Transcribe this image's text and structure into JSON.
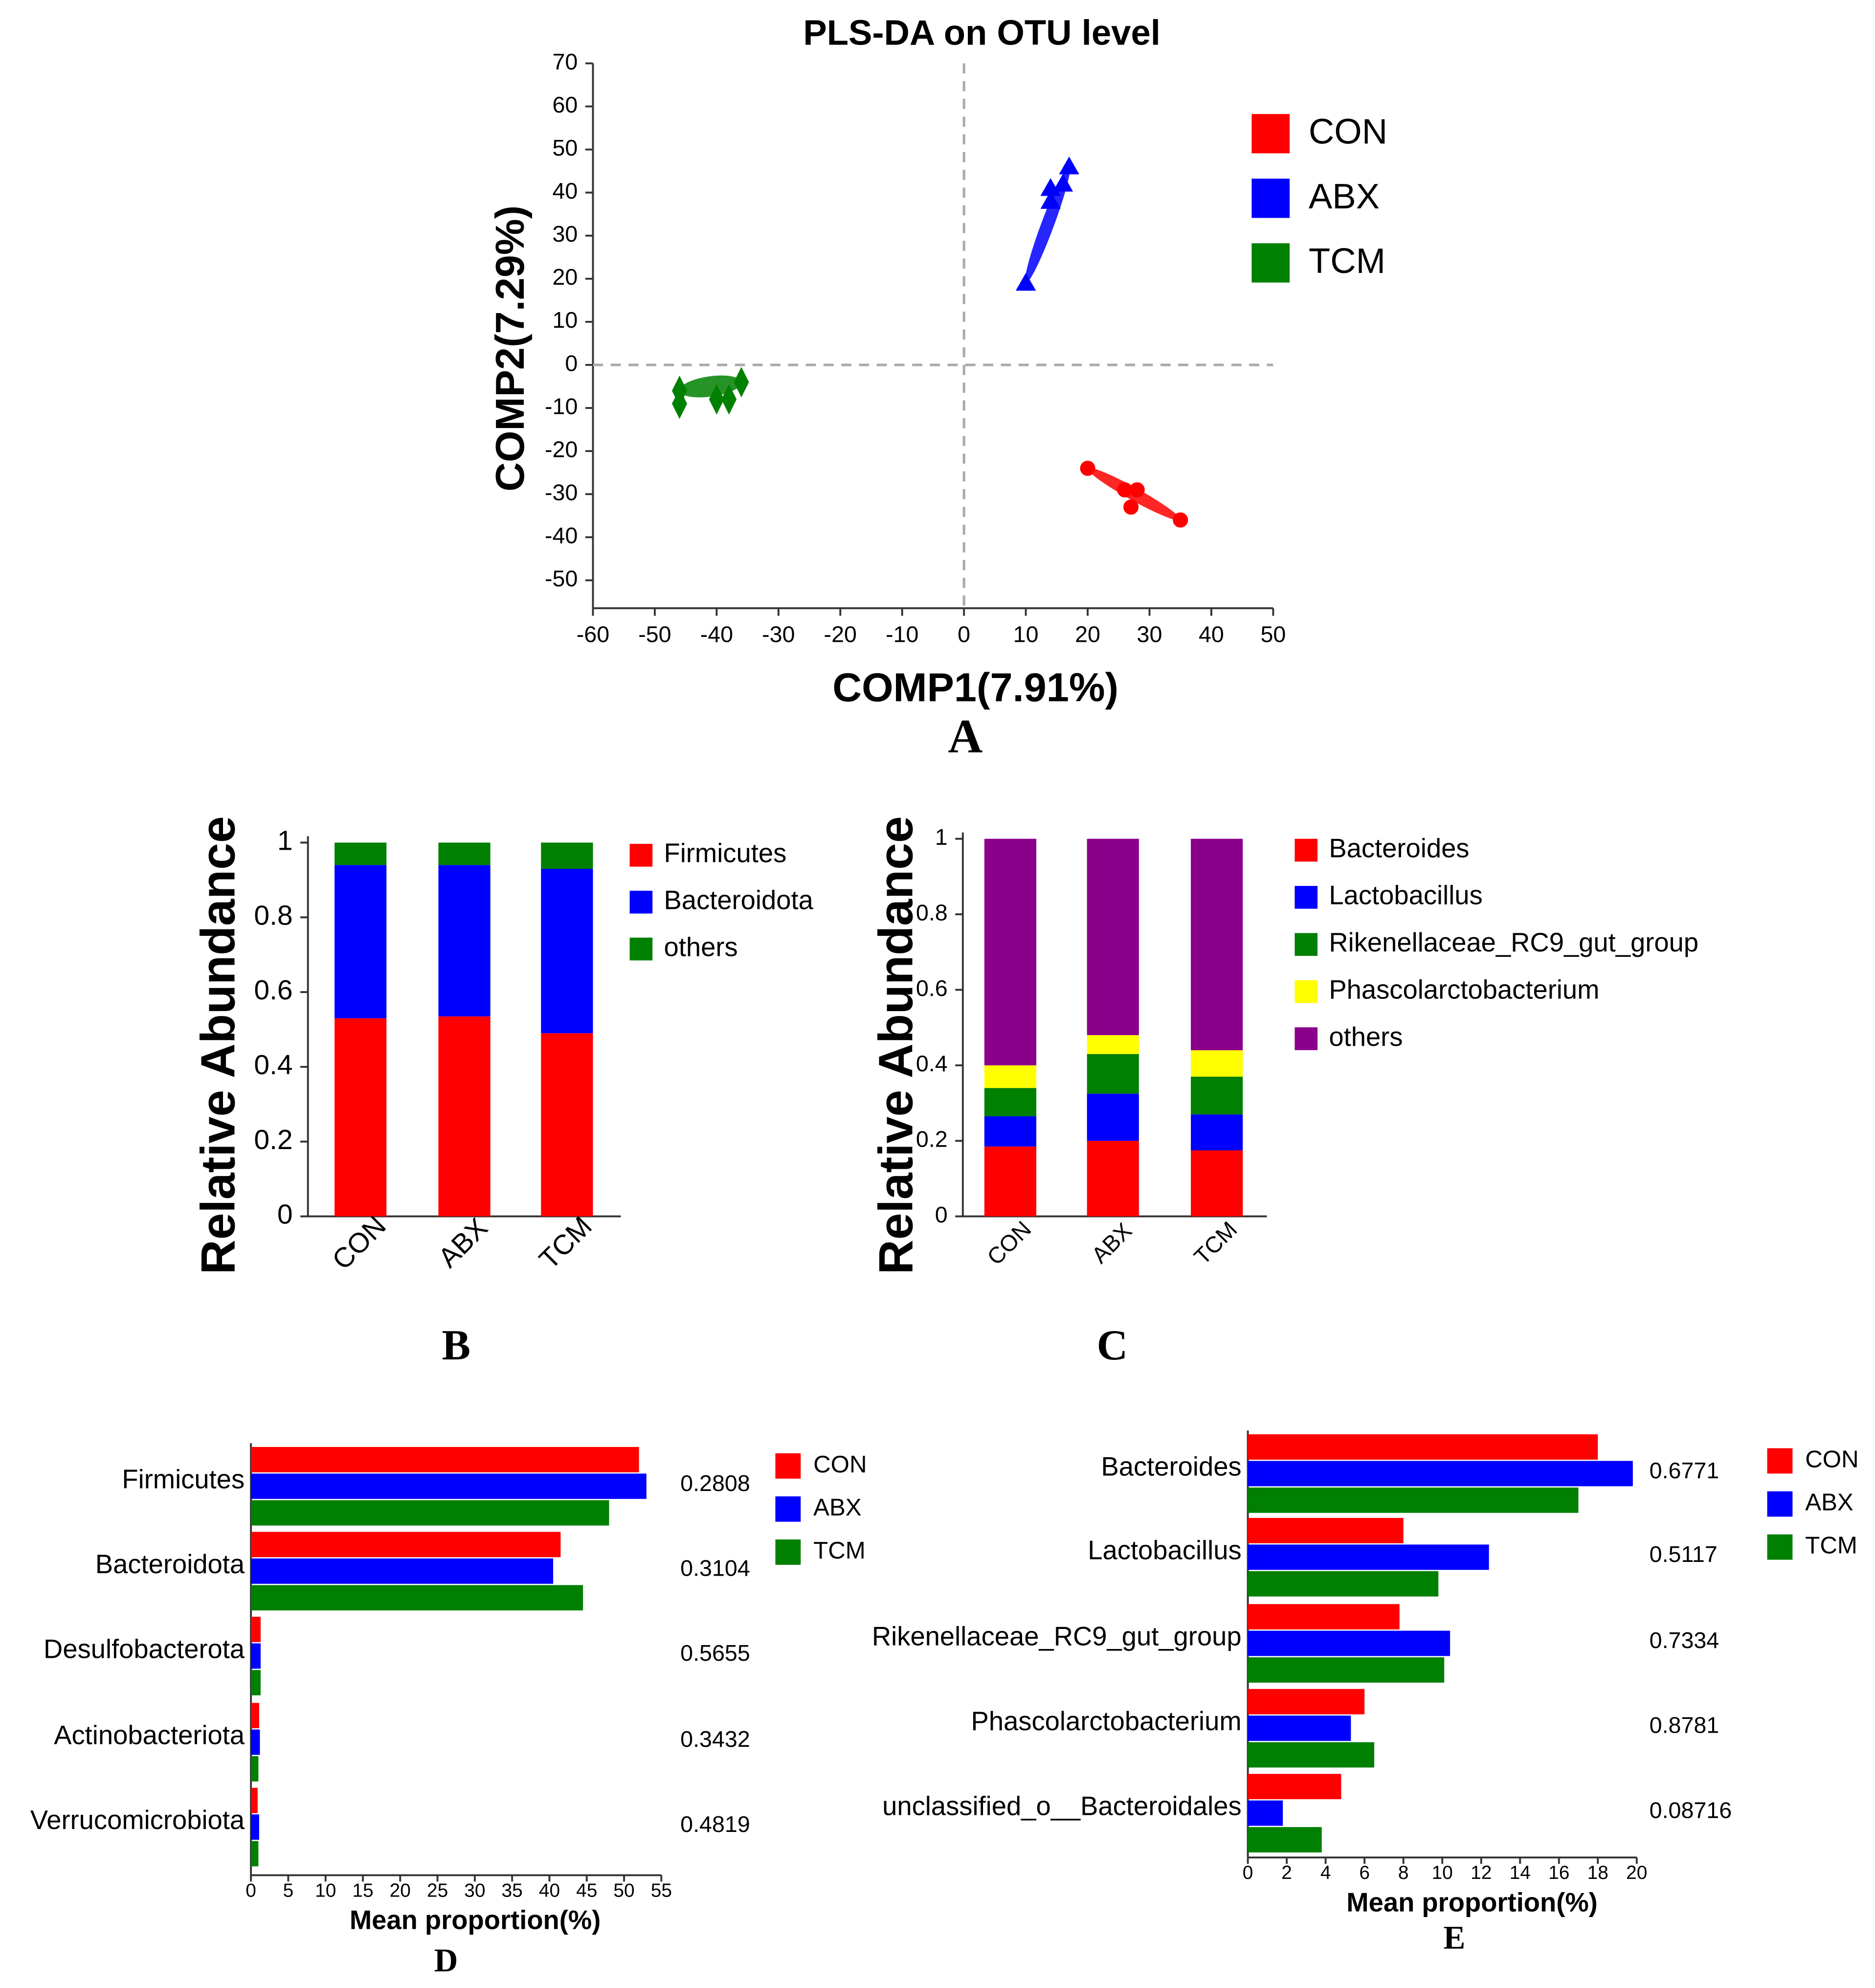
{
  "colors": {
    "CON": "#ff0000",
    "ABX": "#0000ff",
    "TCM": "#008000",
    "yellow": "#ffff00",
    "purple": "#8b008b"
  },
  "chart_data": [
    {
      "type": "scatter",
      "panel": "A",
      "title": "PLS-DA on OTU level",
      "xlabel": "COMP1(7.91%)",
      "ylabel": "COMP2(7.29%)",
      "xlim": [
        -60,
        50
      ],
      "ylim": [
        -56,
        70
      ],
      "xticks": [
        -60,
        -50,
        -40,
        -30,
        -20,
        -10,
        0,
        10,
        20,
        30,
        40,
        50
      ],
      "yticks": [
        70,
        60,
        50,
        40,
        30,
        20,
        10,
        0,
        -10,
        -20,
        -30,
        -40,
        -50
      ],
      "legend": [
        "CON",
        "ABX",
        "TCM"
      ],
      "legend_position": "right",
      "series": [
        {
          "name": "CON",
          "marker": "circle",
          "points": [
            [
              20,
              -24
            ],
            [
              26,
              -29
            ],
            [
              28,
              -29
            ],
            [
              27,
              -33
            ],
            [
              35,
              -36
            ]
          ]
        },
        {
          "name": "ABX",
          "marker": "triangle",
          "points": [
            [
              10,
              19
            ],
            [
              14,
              38
            ],
            [
              14,
              41
            ],
            [
              16,
              42
            ],
            [
              17,
              46
            ]
          ]
        },
        {
          "name": "TCM",
          "marker": "diamond",
          "points": [
            [
              -46,
              -6
            ],
            [
              -46,
              -9
            ],
            [
              -40,
              -8
            ],
            [
              -38,
              -8
            ],
            [
              -36,
              -4
            ]
          ]
        }
      ]
    },
    {
      "type": "bar",
      "stacked": true,
      "panel": "B",
      "ylabel": "Relative Abundance",
      "categories": [
        "CON",
        "ABX",
        "TCM"
      ],
      "yticks": [
        "1",
        "0.8",
        "0.6",
        "0.4",
        "0.2",
        "0"
      ],
      "ylim": [
        0,
        1
      ],
      "series": [
        {
          "name": "Firmicutes",
          "values": [
            0.53,
            0.535,
            0.49
          ]
        },
        {
          "name": "Bacteroidota",
          "values": [
            0.41,
            0.405,
            0.44
          ]
        },
        {
          "name": "others",
          "values": [
            0.06,
            0.06,
            0.07
          ]
        }
      ]
    },
    {
      "type": "bar",
      "stacked": true,
      "panel": "C",
      "ylabel": "Relative Abundance",
      "categories": [
        "CON",
        "ABX",
        "TCM"
      ],
      "yticks": [
        "1",
        "0.8",
        "0.6",
        "0.4",
        "0.2",
        "0"
      ],
      "ylim": [
        0,
        1
      ],
      "series": [
        {
          "name": "Bacteroides",
          "values": [
            0.185,
            0.2,
            0.175
          ]
        },
        {
          "name": "Lactobacillus",
          "values": [
            0.08,
            0.125,
            0.095
          ]
        },
        {
          "name": "Rikenellaceae_RC9_gut_group",
          "values": [
            0.075,
            0.105,
            0.1
          ]
        },
        {
          "name": "Phascolarctobacterium",
          "values": [
            0.06,
            0.05,
            0.07
          ]
        },
        {
          "name": "others",
          "values": [
            0.6,
            0.52,
            0.56
          ]
        }
      ]
    },
    {
      "type": "bar",
      "horizontal": true,
      "panel": "D",
      "xlabel": "Mean proportion(%)",
      "xlim": [
        0,
        55
      ],
      "xticks": [
        0,
        5,
        10,
        15,
        20,
        25,
        30,
        35,
        40,
        45,
        50,
        55
      ],
      "categories": [
        "Firmicutes",
        "Bacteroidota",
        "Desulfobacterota",
        "Actinobacteriota",
        "Verrucomicrobiota"
      ],
      "p_values": [
        "0.2808",
        "0.3104",
        "0.5655",
        "0.3432",
        "0.4819"
      ],
      "series": [
        {
          "name": "CON",
          "values": [
            52,
            41.5,
            1.3,
            1.1,
            0.9
          ]
        },
        {
          "name": "ABX",
          "values": [
            53,
            40.5,
            1.3,
            1.2,
            1.1
          ]
        },
        {
          "name": "TCM",
          "values": [
            48,
            44.5,
            1.3,
            1.0,
            1.0
          ]
        }
      ]
    },
    {
      "type": "bar",
      "horizontal": true,
      "panel": "E",
      "xlabel": "Mean proportion(%)",
      "xlim": [
        0,
        20
      ],
      "xticks": [
        0,
        2,
        4,
        6,
        8,
        10,
        12,
        14,
        16,
        18,
        20
      ],
      "categories": [
        "Bacteroides",
        "Lactobacillus",
        "Rikenellaceae_RC9_gut_group",
        "Phascolarctobacterium",
        "unclassified_o__Bacteroidales"
      ],
      "p_values": [
        "0.6771",
        "0.5117",
        "0.7334",
        "0.8781",
        "0.08716"
      ],
      "series": [
        {
          "name": "CON",
          "values": [
            18,
            8,
            7.8,
            6,
            4.8
          ]
        },
        {
          "name": "ABX",
          "values": [
            19.8,
            12.4,
            10.4,
            5.3,
            1.8
          ]
        },
        {
          "name": "TCM",
          "values": [
            17,
            9.8,
            10.1,
            6.5,
            3.8
          ]
        }
      ]
    }
  ],
  "panel_labels": [
    "A",
    "B",
    "C",
    "D",
    "E"
  ]
}
